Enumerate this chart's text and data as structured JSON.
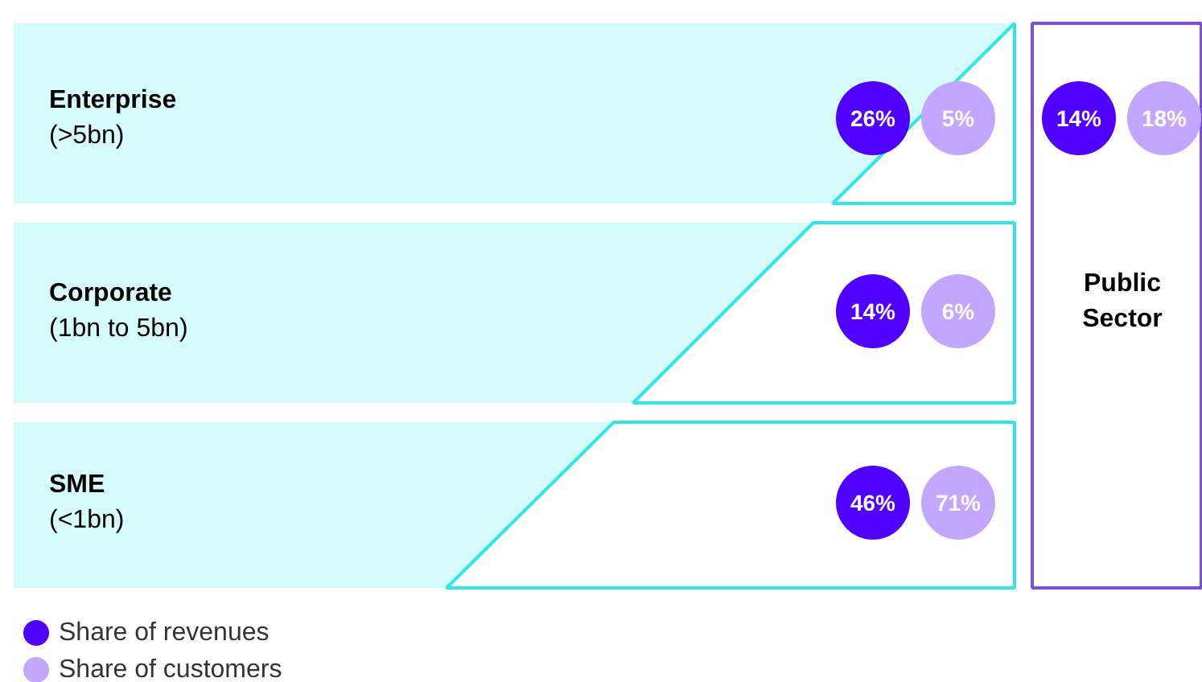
{
  "chart_data": {
    "type": "other",
    "categories": [
      "Enterprise\n(>5bn)",
      "Corporate\n(1bn to 5bn)",
      "SME\n(<1bn)",
      "Public\nSector"
    ],
    "series": [
      {
        "name": "Share of revenues",
        "color": "#5000ff",
        "values": [
          26,
          14,
          46,
          14
        ],
        "value_labels": [
          "26%",
          "14%",
          "46%",
          "14%"
        ]
      },
      {
        "name": "Share of customers",
        "color": "#c3a6ff",
        "values": [
          5,
          6,
          71,
          18
        ],
        "value_labels": [
          "5%",
          "6%",
          "71%",
          "18%"
        ]
      }
    ],
    "legend": "bottom left"
  }
}
